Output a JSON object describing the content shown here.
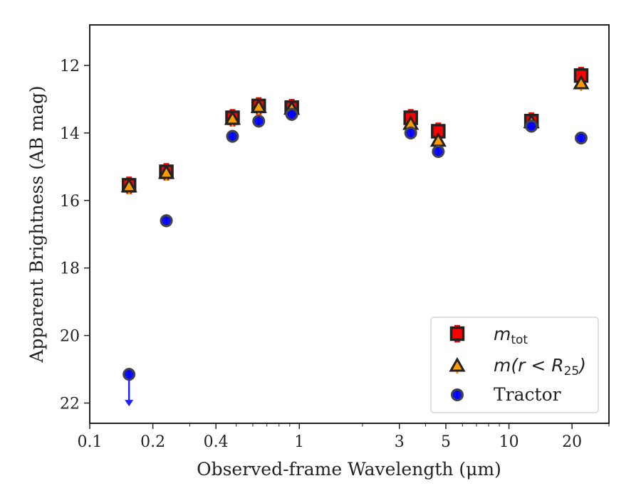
{
  "chart_data": {
    "type": "scatter",
    "xlabel": "Observed-frame Wavelength (μm)",
    "ylabel": "Apparent Brightness (AB mag)",
    "x_scale": "log",
    "xlim": [
      0.1,
      30
    ],
    "ylim": [
      22.6,
      10.8
    ],
    "y_inverted": true,
    "x_ticks": [
      {
        "value": 0.1,
        "label": "0.1"
      },
      {
        "value": 0.2,
        "label": "0.2"
      },
      {
        "value": 0.4,
        "label": "0.4"
      },
      {
        "value": 1,
        "label": "1"
      },
      {
        "value": 3,
        "label": "3"
      },
      {
        "value": 5,
        "label": "5"
      },
      {
        "value": 10,
        "label": "10"
      },
      {
        "value": 20,
        "label": "20"
      }
    ],
    "y_ticks": [
      {
        "value": 12,
        "label": "12"
      },
      {
        "value": 14,
        "label": "14"
      },
      {
        "value": 16,
        "label": "16"
      },
      {
        "value": 18,
        "label": "18"
      },
      {
        "value": 20,
        "label": "20"
      },
      {
        "value": 22,
        "label": "22"
      }
    ],
    "grid": false,
    "legend_position": "bottom-right",
    "series": [
      {
        "name": "m_tot",
        "marker": "square",
        "color": "#ff0000",
        "edge_color": "#222222",
        "x": [
          0.154,
          0.232,
          0.48,
          0.64,
          0.92,
          3.4,
          4.6,
          12.8,
          22.1
        ],
        "y": [
          15.55,
          15.15,
          13.55,
          13.2,
          13.25,
          13.55,
          13.95,
          13.65,
          12.3
        ]
      },
      {
        "name": "m(r < R25)",
        "marker": "triangle",
        "color": "#ff9900",
        "edge_color": "#222222",
        "x": [
          0.154,
          0.232,
          0.48,
          0.64,
          0.92,
          3.4,
          4.6,
          12.8,
          22.1
        ],
        "y": [
          15.6,
          15.2,
          13.6,
          13.25,
          13.3,
          13.75,
          14.25,
          13.7,
          12.55
        ]
      },
      {
        "name": "Tractor",
        "marker": "circle",
        "color": "#0000ff",
        "edge_color": "#444444",
        "x": [
          0.154,
          0.232,
          0.48,
          0.64,
          0.92,
          3.4,
          4.6,
          12.8,
          22.1
        ],
        "y": [
          21.15,
          16.6,
          14.1,
          13.65,
          13.45,
          14.0,
          14.55,
          13.8,
          14.15
        ],
        "upper_limit_index": 0
      }
    ]
  },
  "legend": {
    "mtot_main": "m",
    "mtot_sub": "tot",
    "mr_main": "m(r < R",
    "mr_sub": "25",
    "mr_close": ")",
    "tractor": "Tractor"
  }
}
